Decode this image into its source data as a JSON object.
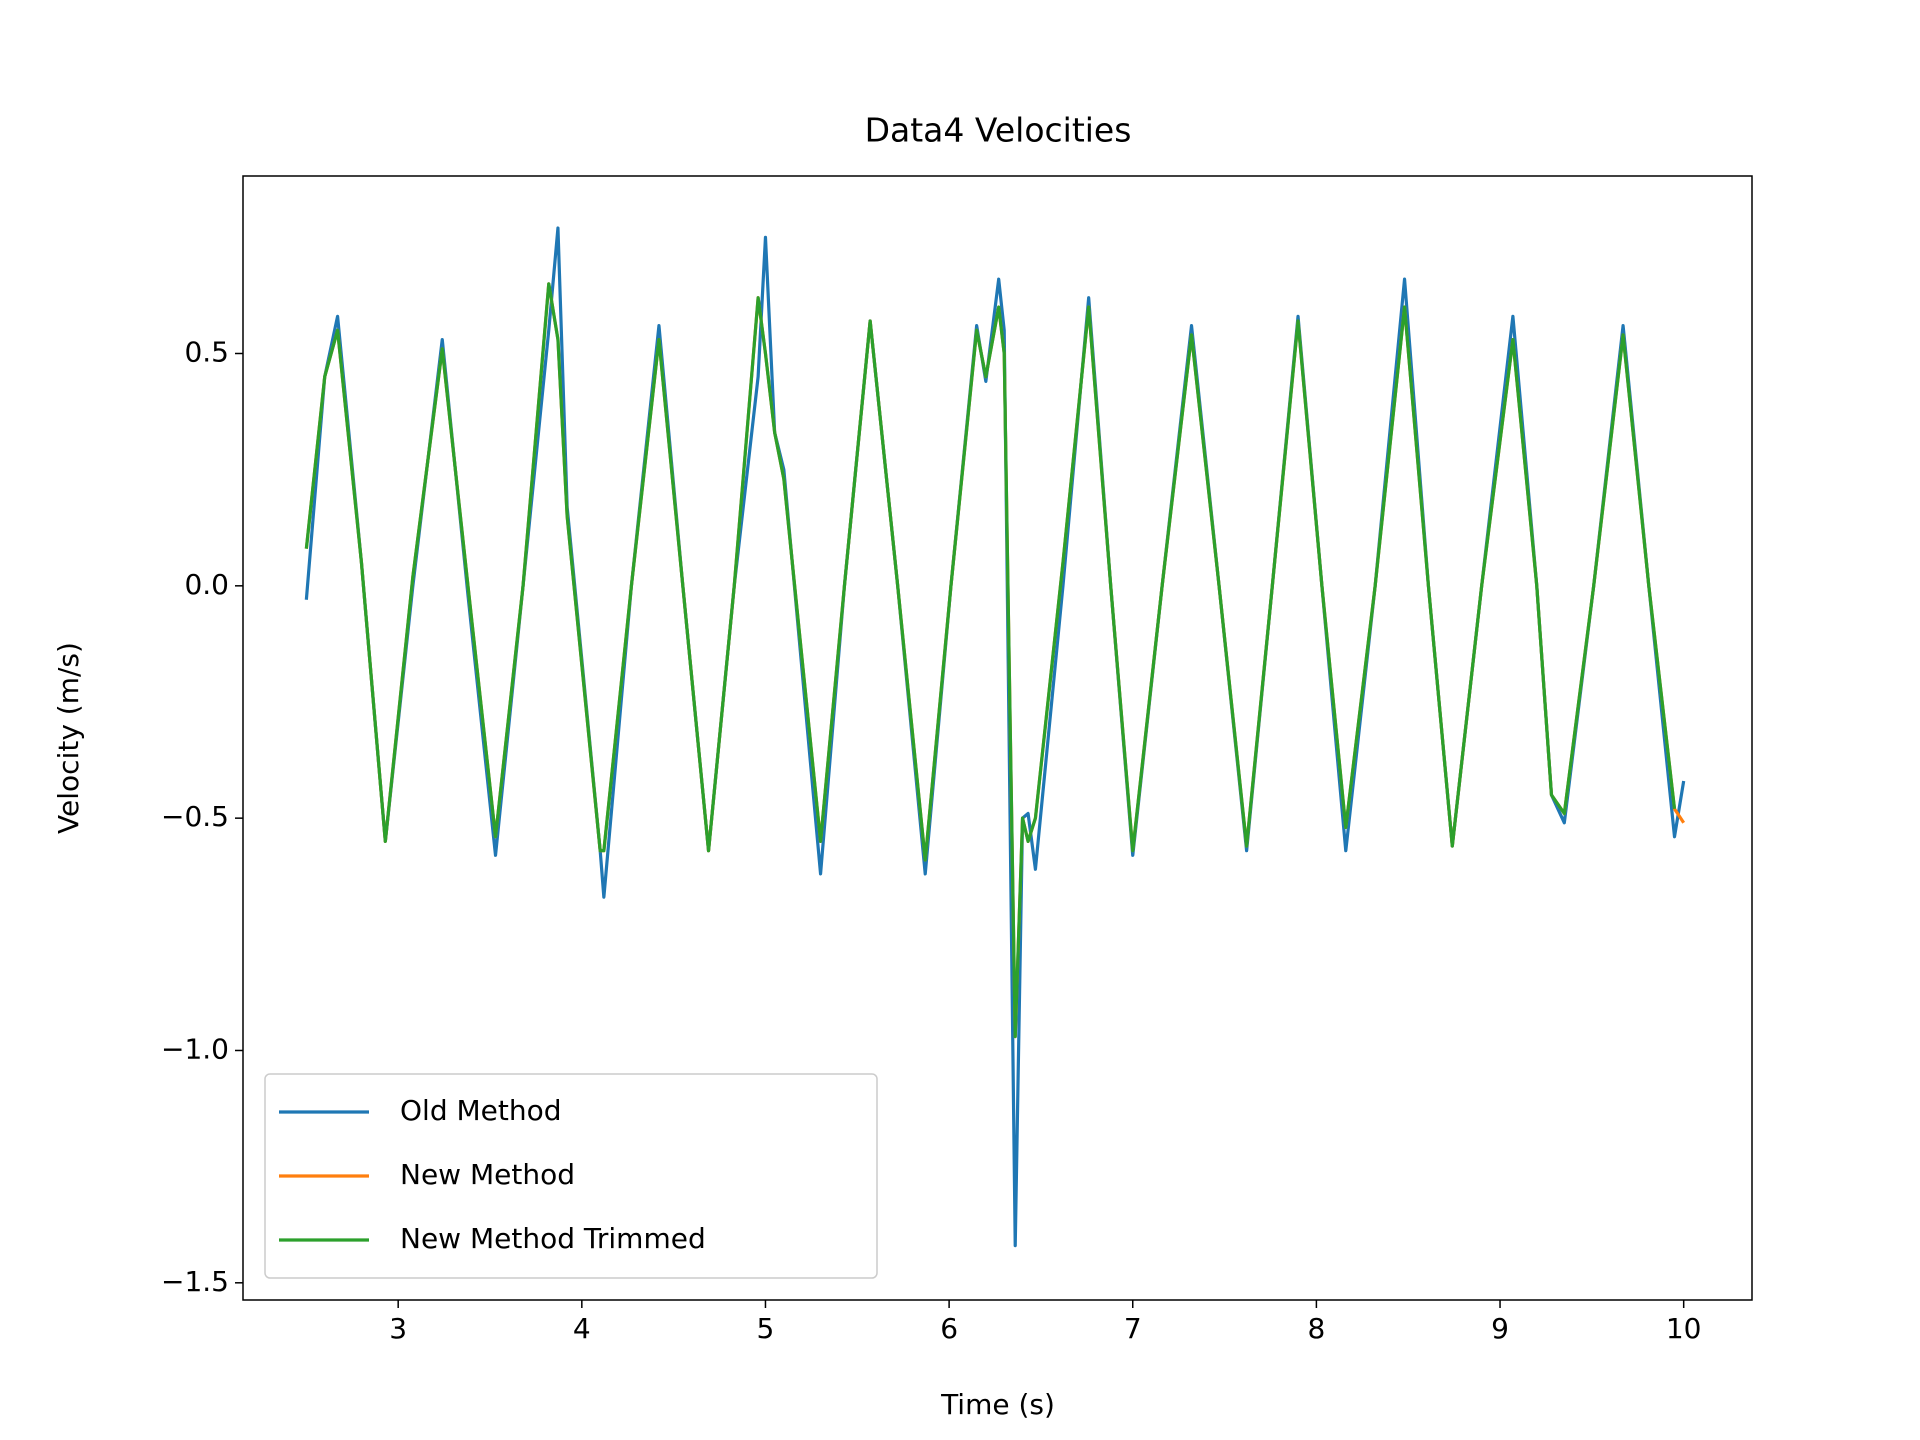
{
  "chart_data": {
    "type": "line",
    "title": "Data4 Velocities",
    "x_label": "Time (s)",
    "y_label": "Velocity (m/s)",
    "x": [
      2.5,
      2.6,
      2.67,
      2.8,
      2.93,
      3.08,
      3.24,
      3.38,
      3.53,
      3.68,
      3.82,
      3.87,
      3.92,
      4.1,
      4.12,
      4.27,
      4.42,
      4.55,
      4.69,
      4.83,
      4.96,
      5.0,
      5.05,
      5.1,
      5.3,
      5.43,
      5.57,
      5.72,
      5.87,
      6.01,
      6.15,
      6.2,
      6.27,
      6.3,
      6.36,
      6.4,
      6.43,
      6.47,
      6.62,
      6.76,
      6.88,
      7.0,
      7.16,
      7.32,
      7.47,
      7.62,
      7.76,
      7.9,
      8.03,
      8.16,
      8.32,
      8.48,
      8.61,
      8.74,
      8.9,
      9.07,
      9.2,
      9.28,
      9.35,
      9.51,
      9.67,
      9.81,
      9.95,
      10.0
    ],
    "series": [
      {
        "name": "Old Method",
        "color": "#1f77b4",
        "values": [
          -0.03,
          0.45,
          0.58,
          0.05,
          -0.55,
          0.0,
          0.53,
          -0.02,
          -0.58,
          0.0,
          0.55,
          0.77,
          0.17,
          -0.57,
          -0.67,
          0.0,
          0.56,
          0.0,
          -0.57,
          0.0,
          0.45,
          0.75,
          0.33,
          0.25,
          -0.62,
          0.0,
          0.57,
          0.0,
          -0.62,
          0.0,
          0.56,
          0.44,
          0.66,
          0.55,
          -1.42,
          -0.5,
          -0.49,
          -0.61,
          0.0,
          0.62,
          0.0,
          -0.58,
          0.0,
          0.56,
          0.0,
          -0.57,
          0.0,
          0.58,
          0.0,
          -0.57,
          0.0,
          0.66,
          0.0,
          -0.56,
          0.0,
          0.58,
          0.0,
          -0.45,
          -0.51,
          0.0,
          0.56,
          0.0,
          -0.54,
          -0.42
        ]
      },
      {
        "name": "New Method",
        "color": "#ff7f0e",
        "values": [
          0.08,
          0.45,
          0.55,
          0.05,
          -0.55,
          0.02,
          0.51,
          0.0,
          -0.54,
          0.0,
          0.65,
          0.53,
          0.15,
          -0.57,
          -0.57,
          0.0,
          0.53,
          0.0,
          -0.57,
          0.0,
          0.62,
          0.5,
          0.33,
          0.23,
          -0.55,
          0.0,
          0.57,
          0.0,
          -0.59,
          0.0,
          0.55,
          0.45,
          0.6,
          0.5,
          -0.97,
          -0.5,
          -0.55,
          -0.5,
          0.05,
          0.6,
          0.0,
          -0.57,
          0.0,
          0.54,
          0.0,
          -0.56,
          0.0,
          0.57,
          0.0,
          -0.52,
          0.0,
          0.6,
          0.0,
          -0.56,
          0.0,
          0.53,
          0.0,
          -0.45,
          -0.49,
          0.0,
          0.54,
          0.0,
          -0.48,
          -0.51
        ]
      },
      {
        "name": "New Method Trimmed",
        "color": "#2ca02c",
        "values": [
          0.08,
          0.45,
          0.55,
          0.05,
          -0.55,
          0.02,
          0.51,
          0.0,
          -0.54,
          0.0,
          0.65,
          0.53,
          0.15,
          -0.57,
          -0.57,
          0.0,
          0.53,
          0.0,
          -0.57,
          0.0,
          0.62,
          0.5,
          0.33,
          0.23,
          -0.55,
          0.0,
          0.57,
          0.0,
          -0.59,
          0.0,
          0.55,
          0.45,
          0.6,
          0.5,
          -0.97,
          -0.5,
          -0.55,
          -0.5,
          0.05,
          0.6,
          0.0,
          -0.57,
          0.0,
          0.54,
          0.0,
          -0.56,
          0.0,
          0.57,
          0.0,
          -0.52,
          0.0,
          0.6,
          0.0,
          -0.56,
          0.0,
          0.53,
          0.0,
          -0.45,
          -0.49,
          0.0,
          0.54,
          0.0,
          -0.48,
          null
        ]
      }
    ],
    "xlim": [
      2.155,
      10.372
    ],
    "ylim": [
      -1.537,
      0.882
    ],
    "xticks": [
      3,
      4,
      5,
      6,
      7,
      8,
      9,
      10
    ],
    "yticks": [
      {
        "value": 0.5,
        "label": "0.5"
      },
      {
        "value": 0,
        "label": "0.0"
      },
      {
        "value": -0.5,
        "label": "−0.5"
      },
      {
        "value": -1,
        "label": "−1.0"
      },
      {
        "value": -1.5,
        "label": "−1.5"
      }
    ],
    "legend": "lower left"
  }
}
